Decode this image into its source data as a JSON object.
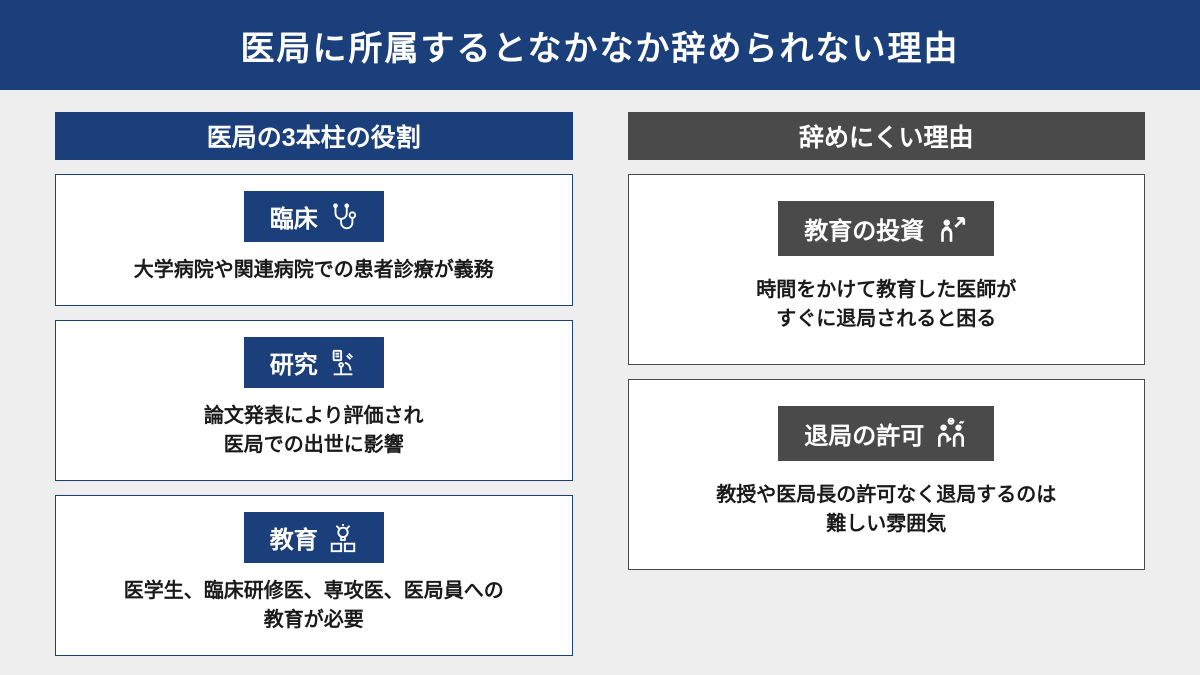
{
  "colors": {
    "headerBg": "#1b3f7a",
    "leftSectionBg": "#1b3f7a",
    "rightSectionBg": "#4a4a4a",
    "leftLabelBg": "#1b3f7a",
    "rightLabelBg": "#4a4a4a",
    "pageBg": "#eeeeee",
    "cardBg": "#ffffff",
    "textDark": "#1a1a1a",
    "textLight": "#ffffff"
  },
  "header": {
    "title": "医局に所属するとなかなか辞められない理由"
  },
  "leftColumn": {
    "sectionTitle": "医局の3本柱の役割",
    "cards": [
      {
        "label": "臨床",
        "icon": "stethoscope",
        "desc": "大学病院や関連病院での患者診療が義務"
      },
      {
        "label": "研究",
        "icon": "microscope",
        "desc": "論文発表により評価され\n医局での出世に影響"
      },
      {
        "label": "教育",
        "icon": "lightbulb-book",
        "desc": "医学生、臨床研修医、専攻医、医局員への\n教育が必要"
      }
    ]
  },
  "rightColumn": {
    "sectionTitle": "辞めにくい理由",
    "cards": [
      {
        "label": "教育の投資",
        "icon": "growth-person",
        "desc": "時間をかけて教育した医師が\nすぐに退局されると困る"
      },
      {
        "label": "退局の許可",
        "icon": "conflict-people",
        "desc": "教授や医局長の許可なく退局するのは\n難しい雰囲気"
      }
    ]
  }
}
